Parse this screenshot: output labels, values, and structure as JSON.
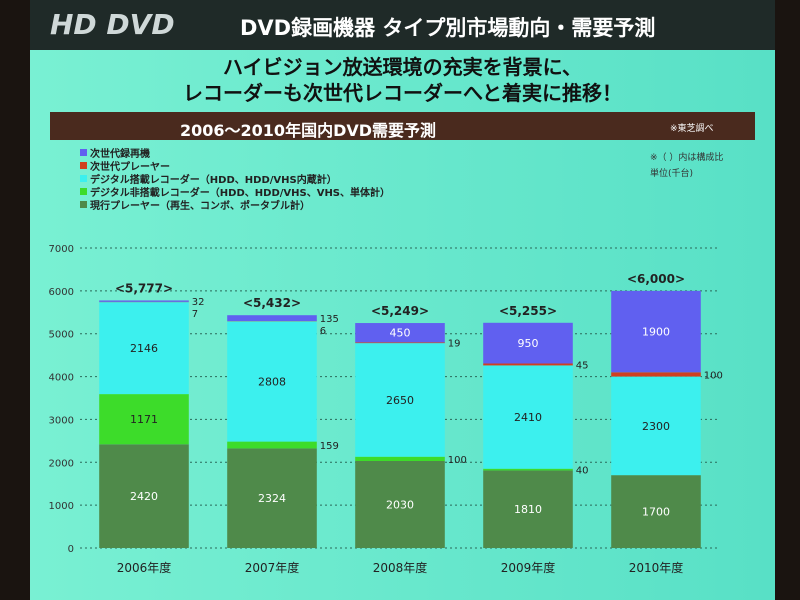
{
  "logo": "HD DVD",
  "header_title": "DVD録画機器 タイプ別市場動向・需要予測",
  "subtitle_line1": "ハイビジョン放送環境の充実を背景に、",
  "subtitle_line2": "レコーダーも次世代レコーダーへと着実に推移！",
  "source_note": "※東芝調べ",
  "ratio_note": "※（ ）内は構成比",
  "unit_note": "単位(千台)",
  "chart_data": {
    "type": "bar",
    "stacked": true,
    "title": "2006～2010年国内DVD需要予測",
    "categories": [
      "2006年度",
      "2007年度",
      "2008年度",
      "2009年度",
      "2010年度"
    ],
    "series": [
      {
        "name": "現行プレーヤー（再生、コンボ、ポータブル計）",
        "color": "#4f8a4a",
        "values": [
          2420,
          2324,
          2030,
          1810,
          1700
        ]
      },
      {
        "name": "デジタル非搭載レコーダー（HDD、HDD/VHS、VHS、単体計）",
        "color": "#3ddc2a",
        "values": [
          1171,
          159,
          100,
          40,
          0
        ]
      },
      {
        "name": "デジタル搭載レコーダー（HDD、HDD/VHS内蔵計）",
        "color": "#3cf0ee",
        "values": [
          2146,
          2808,
          2650,
          2410,
          2300
        ]
      },
      {
        "name": "次世代プレーヤー",
        "color": "#d04020",
        "values": [
          7,
          6,
          19,
          45,
          100
        ]
      },
      {
        "name": "次世代録再機",
        "color": "#6060f0",
        "values": [
          32,
          135,
          450,
          950,
          1900
        ]
      }
    ],
    "totals": [
      "<5,777>",
      "<5,432>",
      "<5,249>",
      "<5,255>",
      "<6,000>"
    ],
    "ylim": [
      0,
      7000
    ],
    "yticks": [
      0,
      1000,
      2000,
      3000,
      4000,
      5000,
      6000,
      7000
    ],
    "legend": "top-left"
  }
}
